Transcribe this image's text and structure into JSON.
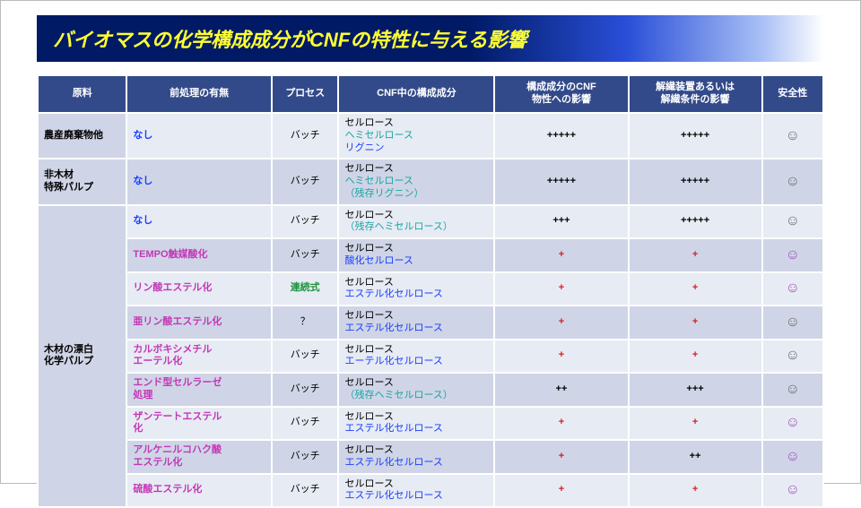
{
  "title": "バイオマスの化学構成成分がCNFの特性に与える影響",
  "colors": {
    "header_bg": "#334a8a",
    "header_fg": "#ffffff",
    "row_a": "#e7ebf3",
    "row_b": "#cfd5e6",
    "title_bg_start": "#001a66",
    "title_fg": "#ffff33",
    "pre_blue": "#1a3fff",
    "pre_magenta": "#c238b8",
    "proc_green": "#1e9440",
    "comp_black": "#000000",
    "comp_teal": "#1aa5a5",
    "comp_blue": "#1a3fff",
    "eff_black": "#000000",
    "eff_red": "#d81e1e",
    "safe_gray": "#6a6a6a",
    "safe_purple": "#a34bc2"
  },
  "columns": [
    "原料",
    "前処理の有無",
    "プロセス",
    "CNF中の構成成分",
    "構成成分のCNF\n物性への影響",
    "解繊装置あるいは\n解繊条件の影響",
    "安全性"
  ],
  "groups": [
    {
      "raw": "農産廃棄物他",
      "rows": [
        {
          "zebra": "a",
          "pre": {
            "text": "なし",
            "color": "pre_blue"
          },
          "proc": {
            "text": "バッチ",
            "color": "comp_black"
          },
          "comp": [
            {
              "text": "セルロース",
              "color": "comp_black"
            },
            {
              "text": "ヘミセルロース",
              "color": "comp_teal"
            },
            {
              "text": "リグニン",
              "color": "comp_blue"
            }
          ],
          "eff1": {
            "text": "+++++",
            "color": "eff_black"
          },
          "eff2": {
            "text": "+++++",
            "color": "eff_black"
          },
          "safe": {
            "glyph": "☺",
            "color": "safe_gray"
          }
        }
      ]
    },
    {
      "raw": "非木材\n特殊パルプ",
      "rows": [
        {
          "zebra": "b",
          "pre": {
            "text": "なし",
            "color": "pre_blue"
          },
          "proc": {
            "text": "バッチ",
            "color": "comp_black"
          },
          "comp": [
            {
              "text": "セルロース",
              "color": "comp_black"
            },
            {
              "text": "ヘミセルロース",
              "color": "comp_teal"
            },
            {
              "text": "（残存リグニン）",
              "color": "comp_teal"
            }
          ],
          "eff1": {
            "text": "+++++",
            "color": "eff_black"
          },
          "eff2": {
            "text": "+++++",
            "color": "eff_black"
          },
          "safe": {
            "glyph": "☺",
            "color": "safe_gray"
          }
        }
      ]
    },
    {
      "raw": "木材の漂白\n化学パルプ",
      "rows": [
        {
          "zebra": "a",
          "pre": {
            "text": "なし",
            "color": "pre_blue"
          },
          "proc": {
            "text": "バッチ",
            "color": "comp_black"
          },
          "comp": [
            {
              "text": "セルロース",
              "color": "comp_black"
            },
            {
              "text": "（残存ヘミセルロース）",
              "color": "comp_teal"
            }
          ],
          "eff1": {
            "text": "+++",
            "color": "eff_black"
          },
          "eff2": {
            "text": "+++++",
            "color": "eff_black"
          },
          "safe": {
            "glyph": "☺",
            "color": "safe_gray"
          }
        },
        {
          "zebra": "b",
          "pre": {
            "text": "TEMPO触媒酸化",
            "color": "pre_magenta"
          },
          "proc": {
            "text": "バッチ",
            "color": "comp_black"
          },
          "comp": [
            {
              "text": "セルロース",
              "color": "comp_black"
            },
            {
              "text": "酸化セルロース",
              "color": "comp_blue"
            }
          ],
          "eff1": {
            "text": "+",
            "color": "eff_red"
          },
          "eff2": {
            "text": "+",
            "color": "eff_red"
          },
          "safe": {
            "glyph": "☺",
            "color": "safe_purple"
          }
        },
        {
          "zebra": "a",
          "pre": {
            "text": "リン酸エステル化",
            "color": "pre_magenta"
          },
          "proc": {
            "text": "連続式",
            "color": "proc_green",
            "bold": true
          },
          "comp": [
            {
              "text": "セルロース",
              "color": "comp_black"
            },
            {
              "text": "エステル化セルロース",
              "color": "comp_blue"
            }
          ],
          "eff1": {
            "text": "+",
            "color": "eff_red"
          },
          "eff2": {
            "text": "+",
            "color": "eff_red"
          },
          "safe": {
            "glyph": "☺",
            "color": "safe_purple"
          }
        },
        {
          "zebra": "b",
          "pre": {
            "text": "亜リン酸エステル化",
            "color": "pre_magenta"
          },
          "proc": {
            "text": "？",
            "color": "comp_black"
          },
          "comp": [
            {
              "text": "セルロース",
              "color": "comp_black"
            },
            {
              "text": "エステル化セルロース",
              "color": "comp_blue"
            }
          ],
          "eff1": {
            "text": "+",
            "color": "eff_red"
          },
          "eff2": {
            "text": "+",
            "color": "eff_red"
          },
          "safe": {
            "glyph": "☺",
            "color": "safe_gray"
          }
        },
        {
          "zebra": "a",
          "pre": {
            "text": "カルボキシメチル\nエーテル化",
            "color": "pre_magenta"
          },
          "proc": {
            "text": "バッチ",
            "color": "comp_black"
          },
          "comp": [
            {
              "text": "セルロース",
              "color": "comp_black"
            },
            {
              "text": "エーテル化セルロース",
              "color": "comp_blue"
            }
          ],
          "eff1": {
            "text": "+",
            "color": "eff_red"
          },
          "eff2": {
            "text": "+",
            "color": "eff_red"
          },
          "safe": {
            "glyph": "☺",
            "color": "safe_gray"
          }
        },
        {
          "zebra": "b",
          "pre": {
            "text": "エンド型セルラーゼ\n処理",
            "color": "pre_magenta"
          },
          "proc": {
            "text": "バッチ",
            "color": "comp_black"
          },
          "comp": [
            {
              "text": "セルロース",
              "color": "comp_black"
            },
            {
              "text": "（残存ヘミセルロース）",
              "color": "comp_teal"
            }
          ],
          "eff1": {
            "text": "++",
            "color": "eff_black"
          },
          "eff2": {
            "text": "+++",
            "color": "eff_black"
          },
          "safe": {
            "glyph": "☺",
            "color": "safe_gray"
          }
        },
        {
          "zebra": "a",
          "pre": {
            "text": "ザンテートエステル\n化",
            "color": "pre_magenta"
          },
          "proc": {
            "text": "バッチ",
            "color": "comp_black"
          },
          "comp": [
            {
              "text": "セルロース",
              "color": "comp_black"
            },
            {
              "text": "エステル化セルロース",
              "color": "comp_blue"
            }
          ],
          "eff1": {
            "text": "+",
            "color": "eff_red"
          },
          "eff2": {
            "text": "+",
            "color": "eff_red"
          },
          "safe": {
            "glyph": "☺",
            "color": "safe_purple"
          }
        },
        {
          "zebra": "b",
          "pre": {
            "text": "アルケニルコハク酸\nエステル化",
            "color": "pre_magenta"
          },
          "proc": {
            "text": "バッチ",
            "color": "comp_black"
          },
          "comp": [
            {
              "text": "セルロース",
              "color": "comp_black"
            },
            {
              "text": "エステル化セルロース",
              "color": "comp_blue"
            }
          ],
          "eff1": {
            "text": "+",
            "color": "eff_red"
          },
          "eff2": {
            "text": "++",
            "color": "eff_black"
          },
          "safe": {
            "glyph": "☺",
            "color": "safe_purple"
          }
        },
        {
          "zebra": "a",
          "pre": {
            "text": "硫酸エステル化",
            "color": "pre_magenta"
          },
          "proc": {
            "text": "バッチ",
            "color": "comp_black"
          },
          "comp": [
            {
              "text": "セルロース",
              "color": "comp_black"
            },
            {
              "text": "エステル化セルロース",
              "color": "comp_blue"
            }
          ],
          "eff1": {
            "text": "+",
            "color": "eff_red"
          },
          "eff2": {
            "text": "+",
            "color": "eff_red"
          },
          "safe": {
            "glyph": "☺",
            "color": "safe_purple"
          }
        }
      ]
    }
  ]
}
